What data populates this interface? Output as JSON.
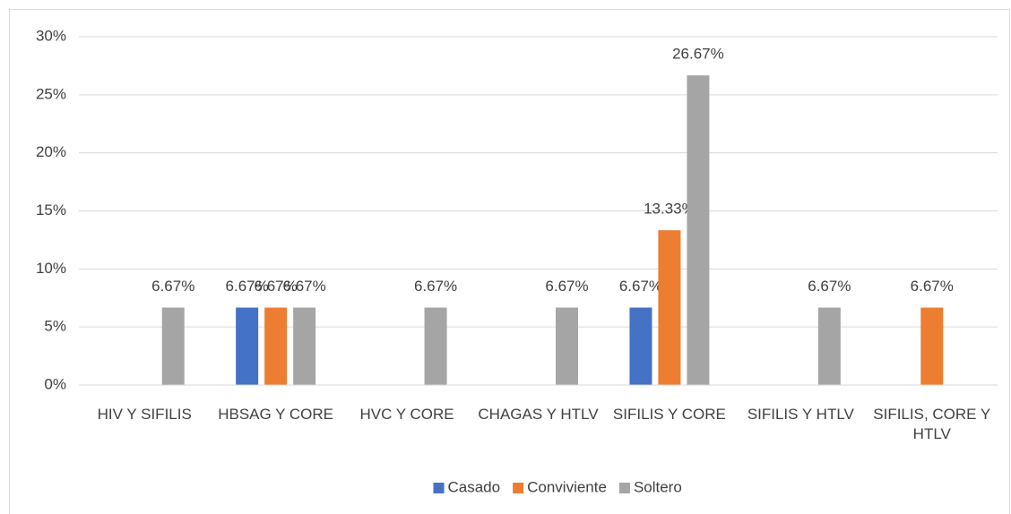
{
  "chart_data": {
    "type": "bar",
    "categories": [
      "HIV Y SIFILIS",
      "HBSAG Y CORE",
      "HVC Y CORE",
      "CHAGAS Y HTLV",
      "SIFILIS Y CORE",
      "SIFILIS Y HTLV",
      "SIFILIS, CORE Y HTLV"
    ],
    "series": [
      {
        "name": "Casado",
        "color": "#4472c4",
        "values": [
          null,
          6.67,
          null,
          null,
          6.67,
          null,
          null
        ],
        "value_labels": [
          null,
          "6.67%",
          null,
          null,
          "6.67%",
          null,
          null
        ]
      },
      {
        "name": "Conviviente",
        "color": "#ed7d31",
        "values": [
          null,
          6.67,
          null,
          null,
          13.33,
          null,
          6.67
        ],
        "value_labels": [
          null,
          "6.67%",
          null,
          null,
          "13.33%",
          null,
          "6.67%"
        ]
      },
      {
        "name": "Soltero",
        "color": "#a5a5a5",
        "values": [
          6.67,
          6.67,
          6.67,
          6.67,
          26.67,
          6.67,
          null
        ],
        "value_labels": [
          "6.67%",
          "6.67%",
          "6.67%",
          "6.67%",
          "26.67%",
          "6.67%",
          null
        ]
      }
    ],
    "ylim": [
      0,
      30
    ],
    "yticks": [
      {
        "value": 0,
        "label": "0%"
      },
      {
        "value": 5,
        "label": "5%"
      },
      {
        "value": 10,
        "label": "10%"
      },
      {
        "value": 15,
        "label": "15%"
      },
      {
        "value": 20,
        "label": "20%"
      },
      {
        "value": 25,
        "label": "25%"
      },
      {
        "value": 30,
        "label": "30%"
      }
    ],
    "grid": true,
    "legend": "bottom"
  }
}
